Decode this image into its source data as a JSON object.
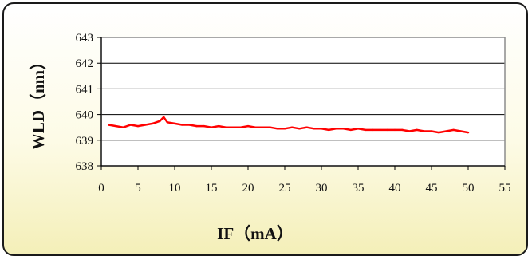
{
  "chart_data": {
    "type": "line",
    "title": "",
    "xlabel": "IF（mA）",
    "ylabel": "WLD（nm）",
    "xlim": [
      0,
      55
    ],
    "ylim": [
      638,
      643
    ],
    "xticks": [
      "0",
      "5",
      "10",
      "15",
      "20",
      "25",
      "30",
      "35",
      "40",
      "45",
      "50",
      "55"
    ],
    "yticks": [
      "638",
      "639",
      "640",
      "641",
      "642",
      "643"
    ],
    "grid": "horizontal",
    "legend": "none",
    "series": [
      {
        "color": "#ff0000",
        "x": [
          1,
          2,
          3,
          4,
          5,
          6,
          7,
          8,
          8.5,
          9,
          10,
          11,
          12,
          13,
          14,
          15,
          16,
          17,
          18,
          19,
          20,
          21,
          22,
          23,
          24,
          25,
          26,
          27,
          28,
          29,
          30,
          31,
          32,
          33,
          34,
          35,
          36,
          37,
          38,
          39,
          40,
          41,
          42,
          43,
          44,
          45,
          46,
          47,
          48,
          49,
          50
        ],
        "y": [
          639.6,
          639.55,
          639.5,
          639.6,
          639.55,
          639.6,
          639.65,
          639.75,
          639.9,
          639.7,
          639.65,
          639.6,
          639.6,
          639.55,
          639.55,
          639.5,
          639.55,
          639.5,
          639.5,
          639.5,
          639.55,
          639.5,
          639.5,
          639.5,
          639.45,
          639.45,
          639.5,
          639.45,
          639.5,
          639.45,
          639.45,
          639.4,
          639.45,
          639.45,
          639.4,
          639.45,
          639.4,
          639.4,
          639.4,
          639.4,
          639.4,
          639.4,
          639.35,
          639.4,
          639.35,
          639.35,
          639.3,
          639.35,
          639.4,
          639.35,
          639.3
        ]
      }
    ]
  }
}
